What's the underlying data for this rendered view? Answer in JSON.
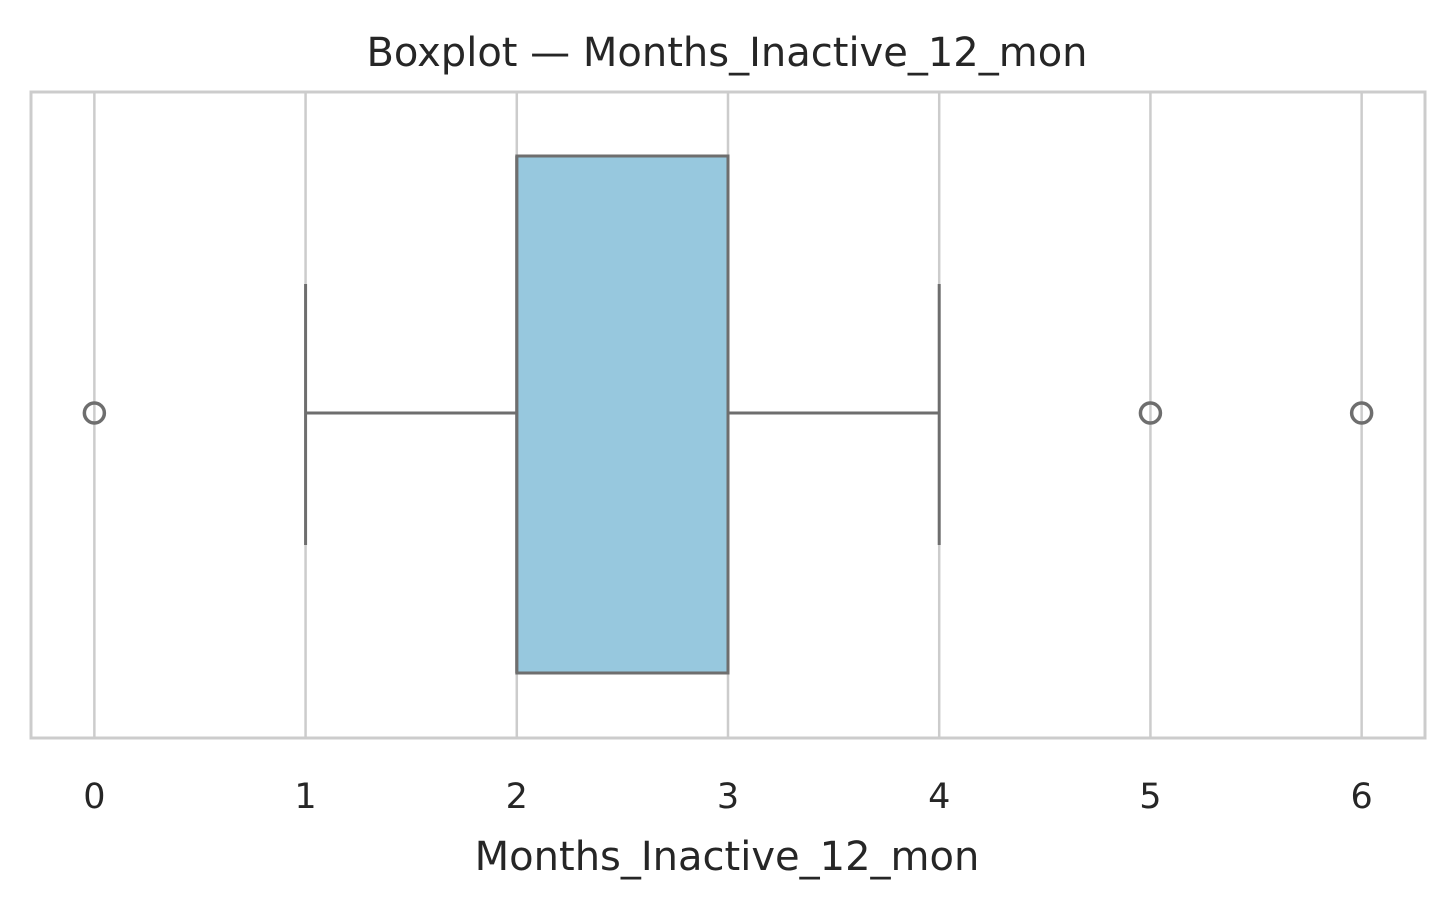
{
  "chart_data": {
    "type": "box",
    "title": "Boxplot — Months_Inactive_12_mon",
    "xlabel": "Months_Inactive_12_mon",
    "xlim": [
      -0.3,
      6.3
    ],
    "xticks": [
      0,
      1,
      2,
      3,
      4,
      5,
      6
    ],
    "xtick_labels": [
      "0",
      "1",
      "2",
      "3",
      "4",
      "5",
      "6"
    ],
    "grid": "vertical",
    "box": {
      "whisker_low": 1,
      "q1": 2,
      "median": 2,
      "q3": 3,
      "whisker_high": 4
    },
    "outliers": [
      0,
      5,
      6
    ],
    "colors": {
      "box_fill": "#97c8de",
      "line": "#6e6e6e",
      "grid": "#cccccc",
      "frame": "#cccccc",
      "text": "#262626"
    }
  }
}
